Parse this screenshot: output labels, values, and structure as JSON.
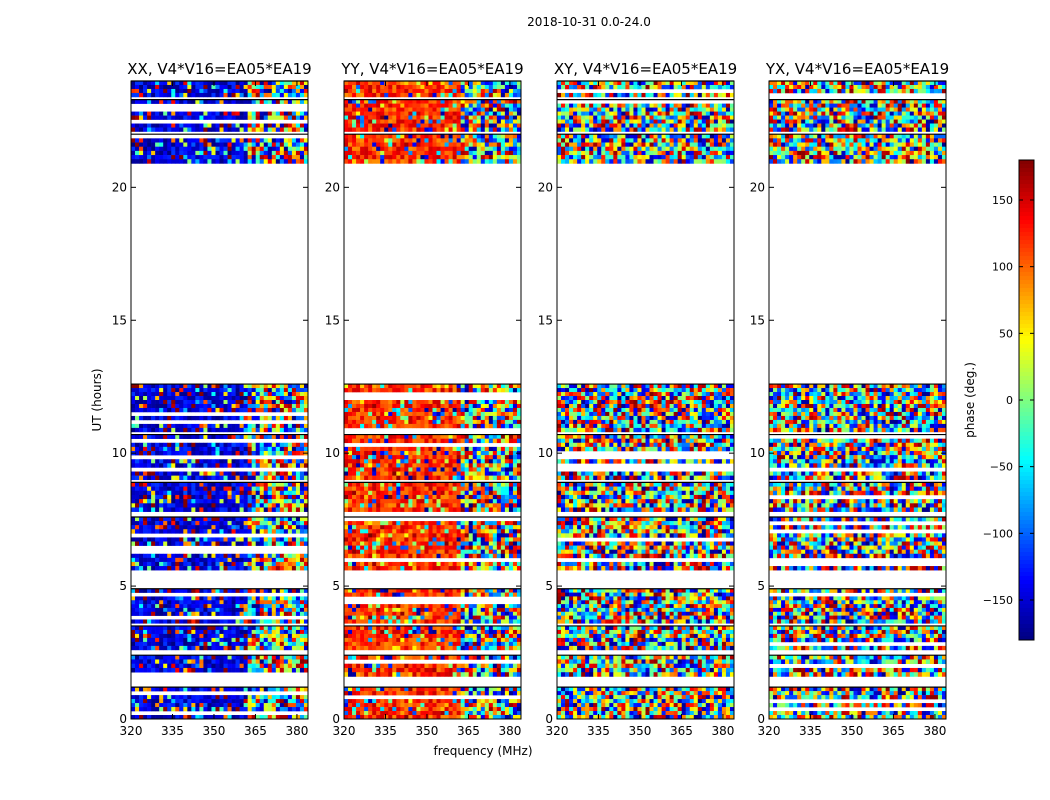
{
  "figure": {
    "suptitle": "2018-10-31 0.0-24.0",
    "xlabel": "frequency (MHz)",
    "ylabel": "UT (hours)"
  },
  "chart_data": {
    "type": "heatmap",
    "x_ticks": [
      320,
      335,
      350,
      365,
      380
    ],
    "y_ticks": [
      0,
      5,
      10,
      15,
      20
    ],
    "xlim": [
      320,
      384
    ],
    "ylim": [
      0,
      24
    ],
    "data_bands_hours": [
      [
        0.0,
        1.2
      ],
      [
        1.6,
        2.4
      ],
      [
        2.6,
        3.5
      ],
      [
        3.6,
        4.9
      ],
      [
        5.6,
        7.6
      ],
      [
        7.8,
        8.9
      ],
      [
        9.0,
        10.7
      ],
      [
        10.8,
        12.6
      ],
      [
        20.9,
        22.0
      ],
      [
        22.1,
        23.3
      ],
      [
        23.4,
        24.0
      ]
    ],
    "panels": [
      {
        "title": "XX, V4*V16=EA05*EA19",
        "base_phase": -150
      },
      {
        "title": "YY, V4*V16=EA05*EA19",
        "base_phase": 120
      },
      {
        "title": "XY, V4*V16=EA05*EA19",
        "base_phase": 0
      },
      {
        "title": "YX, V4*V16=EA05*EA19",
        "base_phase": 0
      }
    ],
    "colorbar": {
      "label": "phase (deg.)",
      "range": [
        -180,
        180
      ],
      "ticks": [
        "150",
        "100",
        "50",
        "0",
        "−50",
        "−100",
        "−150"
      ],
      "tick_values": [
        150,
        100,
        50,
        0,
        -50,
        -100,
        -150
      ],
      "colormap": "jet"
    }
  }
}
